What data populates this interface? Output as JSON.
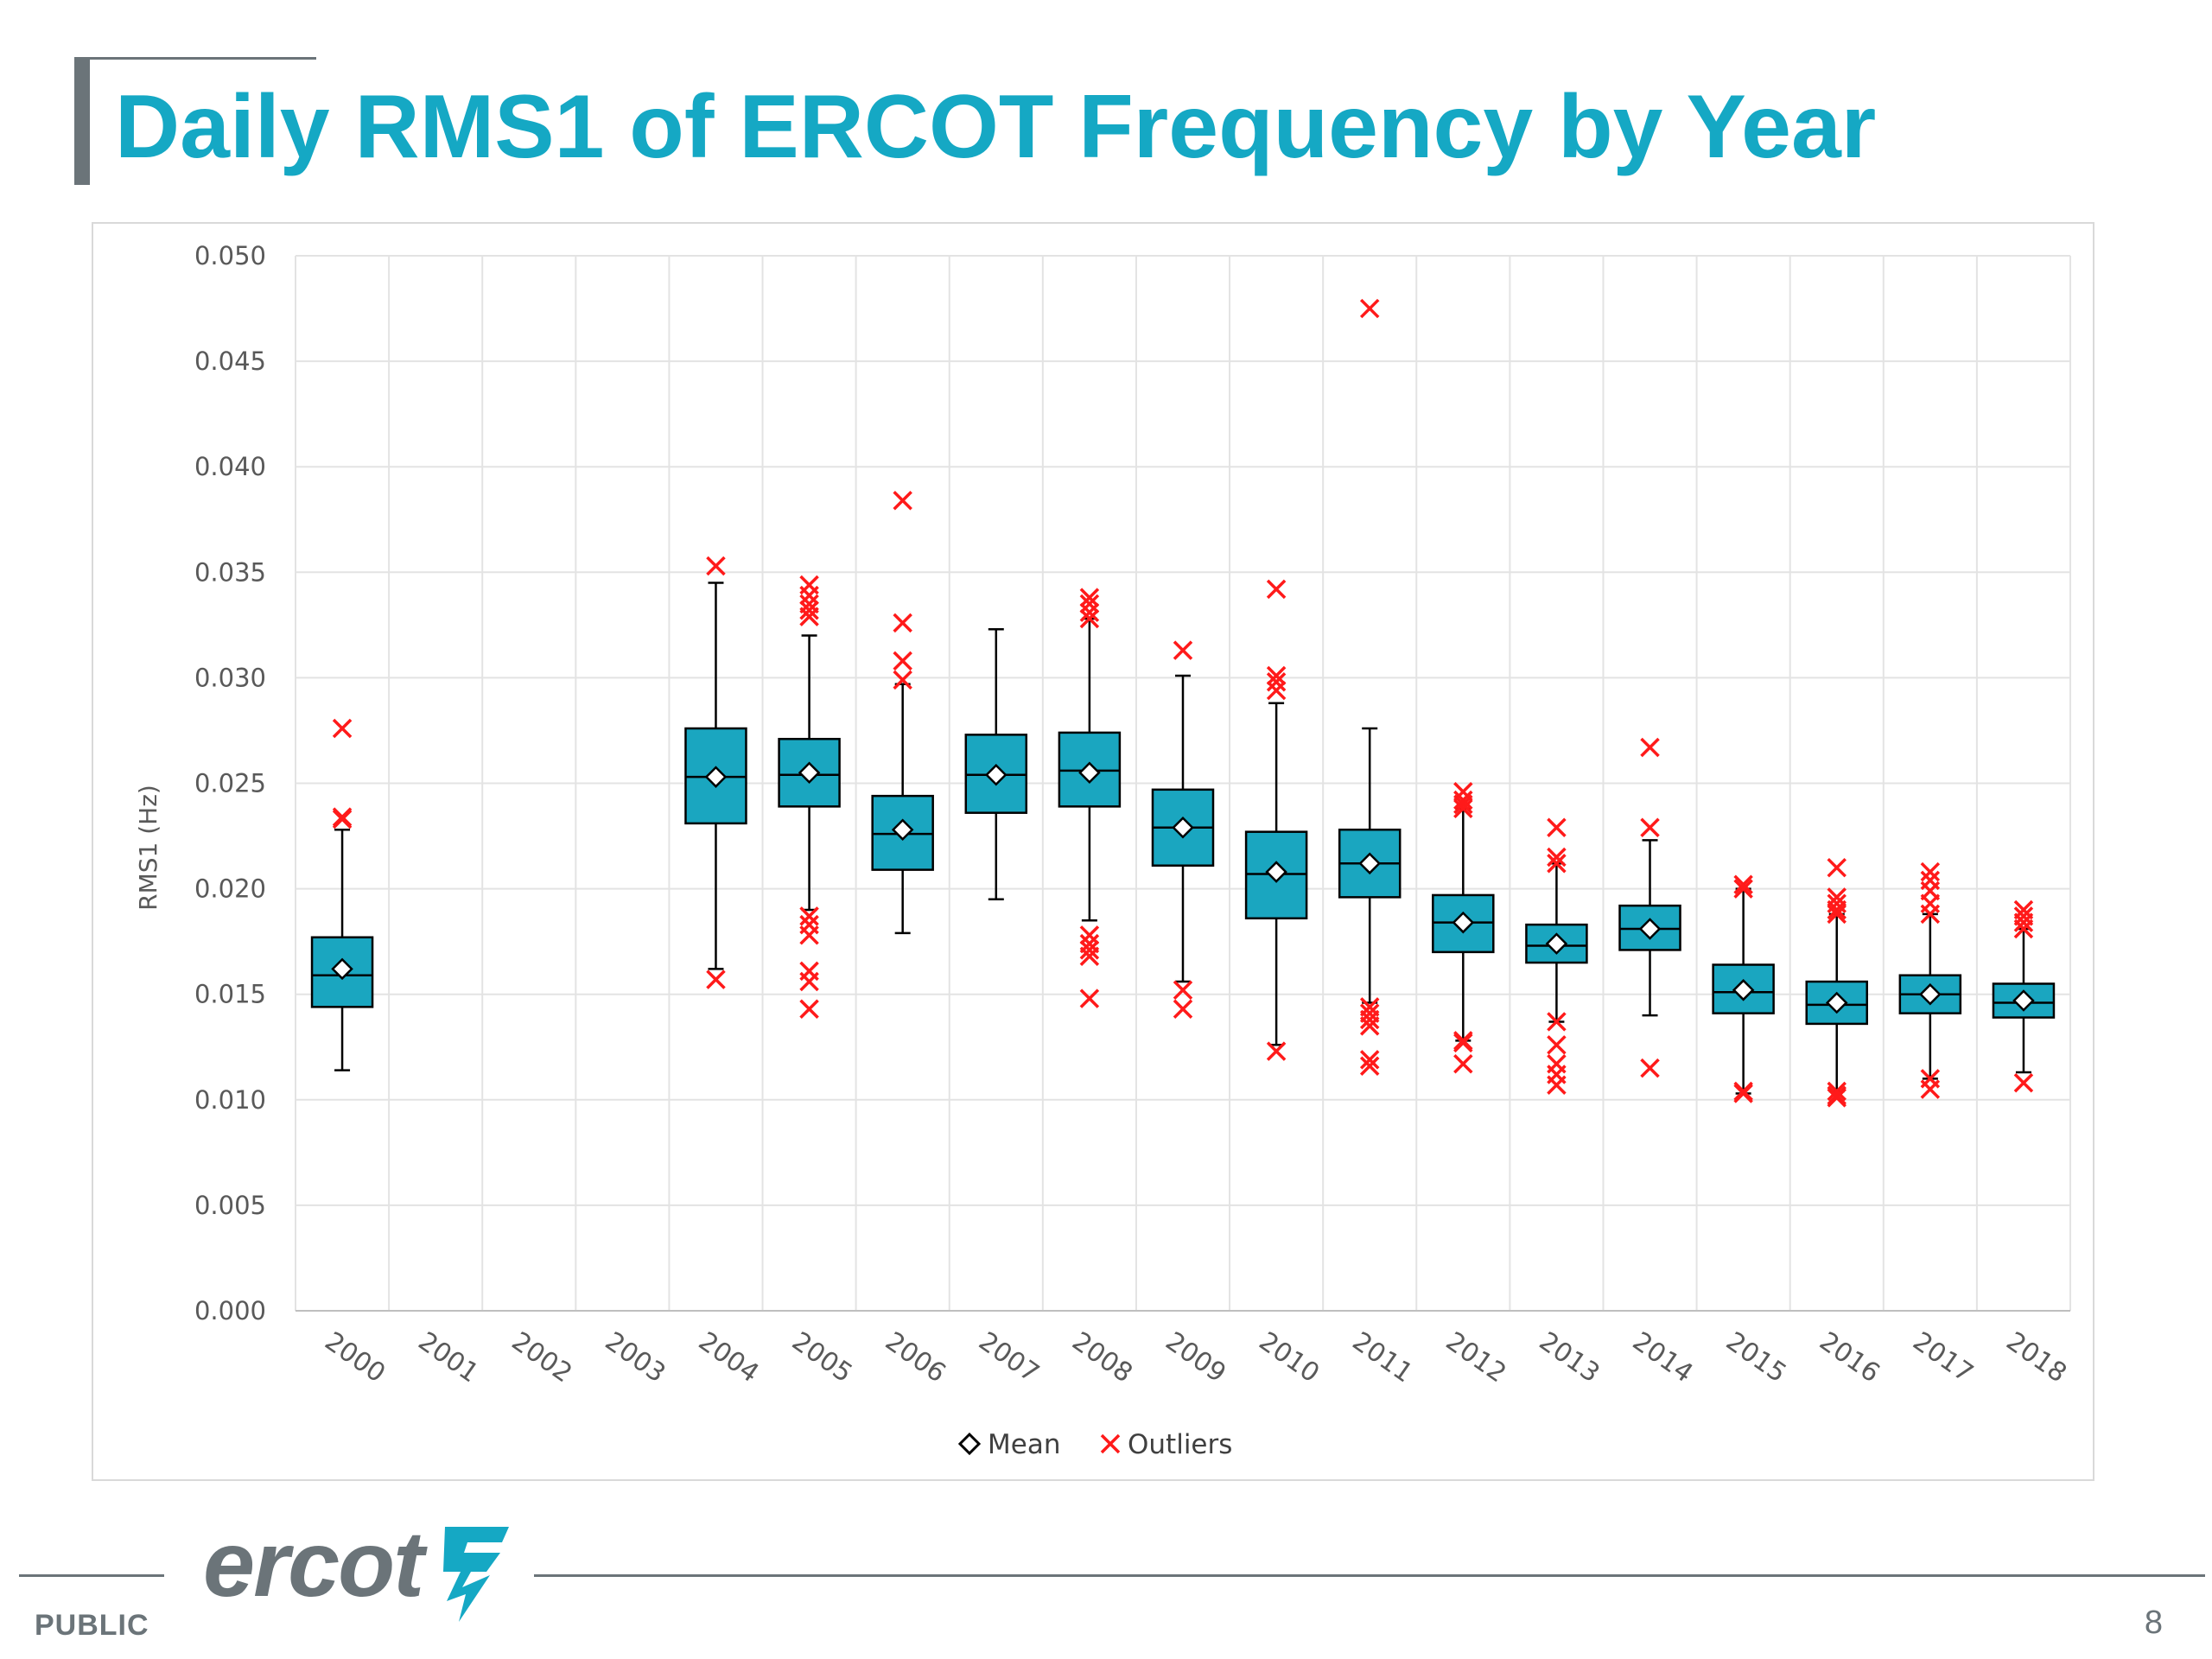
{
  "page": {
    "title": "Daily RMS1 of ERCOT Frequency by Year",
    "logo_text": "ercot",
    "classification": "PUBLIC",
    "page_number": "8"
  },
  "colors": {
    "title": "#15a8c4",
    "box_fill": "#1aa6c0",
    "outlier": "#ff1a1a",
    "gray": "#6b7479",
    "grid": "#e3e3e3",
    "axis_text": "#595959"
  },
  "chart_data": {
    "type": "boxplot",
    "title": "",
    "xlabel": "",
    "ylabel": "RMS1 (Hz)",
    "ylim": [
      0,
      0.05
    ],
    "yticks": [
      "0.000",
      "0.005",
      "0.010",
      "0.015",
      "0.020",
      "0.025",
      "0.030",
      "0.035",
      "0.040",
      "0.045",
      "0.050"
    ],
    "categories": [
      "2000",
      "2001",
      "2002",
      "2003",
      "2004",
      "2005",
      "2006",
      "2007",
      "2008",
      "2009",
      "2010",
      "2011",
      "2012",
      "2013",
      "2014",
      "2015",
      "2016",
      "2017",
      "2018"
    ],
    "legend": {
      "placement": "bottom-center",
      "items": [
        {
          "symbol": "diamond",
          "label": "Mean"
        },
        {
          "symbol": "x",
          "label": "Outliers"
        }
      ]
    },
    "boxes": [
      {
        "year": "2000",
        "wmin": 0.0114,
        "q1": 0.0144,
        "median": 0.0159,
        "q3": 0.0177,
        "wmax": 0.0228,
        "mean": 0.0162,
        "outliers": [
          0.0276,
          0.0234,
          0.0233
        ]
      },
      {
        "year": "2001",
        "wmin": null,
        "q1": null,
        "median": null,
        "q3": null,
        "wmax": null,
        "mean": null,
        "outliers": []
      },
      {
        "year": "2002",
        "wmin": null,
        "q1": null,
        "median": null,
        "q3": null,
        "wmax": null,
        "mean": null,
        "outliers": []
      },
      {
        "year": "2003",
        "wmin": null,
        "q1": null,
        "median": null,
        "q3": null,
        "wmax": null,
        "mean": null,
        "outliers": []
      },
      {
        "year": "2004",
        "wmin": 0.0162,
        "q1": 0.0231,
        "median": 0.0253,
        "q3": 0.0276,
        "wmax": 0.0345,
        "mean": 0.0253,
        "outliers": [
          0.0353,
          0.0157
        ]
      },
      {
        "year": "2005",
        "wmin": 0.019,
        "q1": 0.0239,
        "median": 0.0254,
        "q3": 0.0271,
        "wmax": 0.032,
        "mean": 0.0255,
        "outliers": [
          0.0344,
          0.0339,
          0.0335,
          0.0332,
          0.0329,
          0.0187,
          0.0183,
          0.0178,
          0.0161,
          0.0156,
          0.0143
        ]
      },
      {
        "year": "2006",
        "wmin": 0.0179,
        "q1": 0.0209,
        "median": 0.0226,
        "q3": 0.0244,
        "wmax": 0.0297,
        "mean": 0.0228,
        "outliers": [
          0.0384,
          0.0326,
          0.0308,
          0.0299
        ]
      },
      {
        "year": "2007",
        "wmin": 0.0195,
        "q1": 0.0236,
        "median": 0.0254,
        "q3": 0.0273,
        "wmax": 0.0323,
        "mean": 0.0254,
        "outliers": []
      },
      {
        "year": "2008",
        "wmin": 0.0185,
        "q1": 0.0239,
        "median": 0.0256,
        "q3": 0.0274,
        "wmax": 0.0328,
        "mean": 0.0255,
        "outliers": [
          0.0338,
          0.0335,
          0.0331,
          0.0328,
          0.0178,
          0.0174,
          0.0171,
          0.0168,
          0.0148
        ]
      },
      {
        "year": "2009",
        "wmin": 0.0156,
        "q1": 0.0211,
        "median": 0.0229,
        "q3": 0.0247,
        "wmax": 0.0301,
        "mean": 0.0229,
        "outliers": [
          0.0313,
          0.0152,
          0.0143
        ]
      },
      {
        "year": "2010",
        "wmin": 0.0126,
        "q1": 0.0186,
        "median": 0.0207,
        "q3": 0.0227,
        "wmax": 0.0288,
        "mean": 0.0208,
        "outliers": [
          0.0342,
          0.0301,
          0.0298,
          0.0294,
          0.0123
        ]
      },
      {
        "year": "2011",
        "wmin": 0.0146,
        "q1": 0.0196,
        "median": 0.0212,
        "q3": 0.0228,
        "wmax": 0.0276,
        "mean": 0.0212,
        "outliers": [
          0.0475,
          0.0144,
          0.0141,
          0.0138,
          0.0135,
          0.0119,
          0.0116
        ]
      },
      {
        "year": "2012",
        "wmin": 0.0128,
        "q1": 0.017,
        "median": 0.0184,
        "q3": 0.0197,
        "wmax": 0.0238,
        "mean": 0.0184,
        "outliers": [
          0.0246,
          0.0242,
          0.024,
          0.0238,
          0.0128,
          0.0127,
          0.0117
        ]
      },
      {
        "year": "2013",
        "wmin": 0.0137,
        "q1": 0.0165,
        "median": 0.0173,
        "q3": 0.0183,
        "wmax": 0.0212,
        "mean": 0.0174,
        "outliers": [
          0.0229,
          0.0215,
          0.0212,
          0.0137,
          0.0126,
          0.0117,
          0.0112,
          0.0107
        ]
      },
      {
        "year": "2014",
        "wmin": 0.014,
        "q1": 0.0171,
        "median": 0.0181,
        "q3": 0.0192,
        "wmax": 0.0223,
        "mean": 0.0181,
        "outliers": [
          0.0267,
          0.0229,
          0.0115
        ]
      },
      {
        "year": "2015",
        "wmin": 0.0103,
        "q1": 0.0141,
        "median": 0.0151,
        "q3": 0.0164,
        "wmax": 0.02,
        "mean": 0.0152,
        "outliers": [
          0.0202,
          0.02,
          0.0104,
          0.0103
        ]
      },
      {
        "year": "2016",
        "wmin": 0.0104,
        "q1": 0.0136,
        "median": 0.0145,
        "q3": 0.0156,
        "wmax": 0.0188,
        "mean": 0.0146,
        "outliers": [
          0.021,
          0.0196,
          0.0193,
          0.019,
          0.0188,
          0.0104,
          0.0102,
          0.0101
        ]
      },
      {
        "year": "2017",
        "wmin": 0.011,
        "q1": 0.0141,
        "median": 0.015,
        "q3": 0.0159,
        "wmax": 0.0188,
        "mean": 0.015,
        "outliers": [
          0.0208,
          0.0204,
          0.0199,
          0.0193,
          0.0188,
          0.011,
          0.0105
        ]
      },
      {
        "year": "2018",
        "wmin": 0.0113,
        "q1": 0.0139,
        "median": 0.0146,
        "q3": 0.0155,
        "wmax": 0.0181,
        "mean": 0.0147,
        "outliers": [
          0.019,
          0.0187,
          0.0184,
          0.0181,
          0.0108
        ]
      }
    ]
  }
}
